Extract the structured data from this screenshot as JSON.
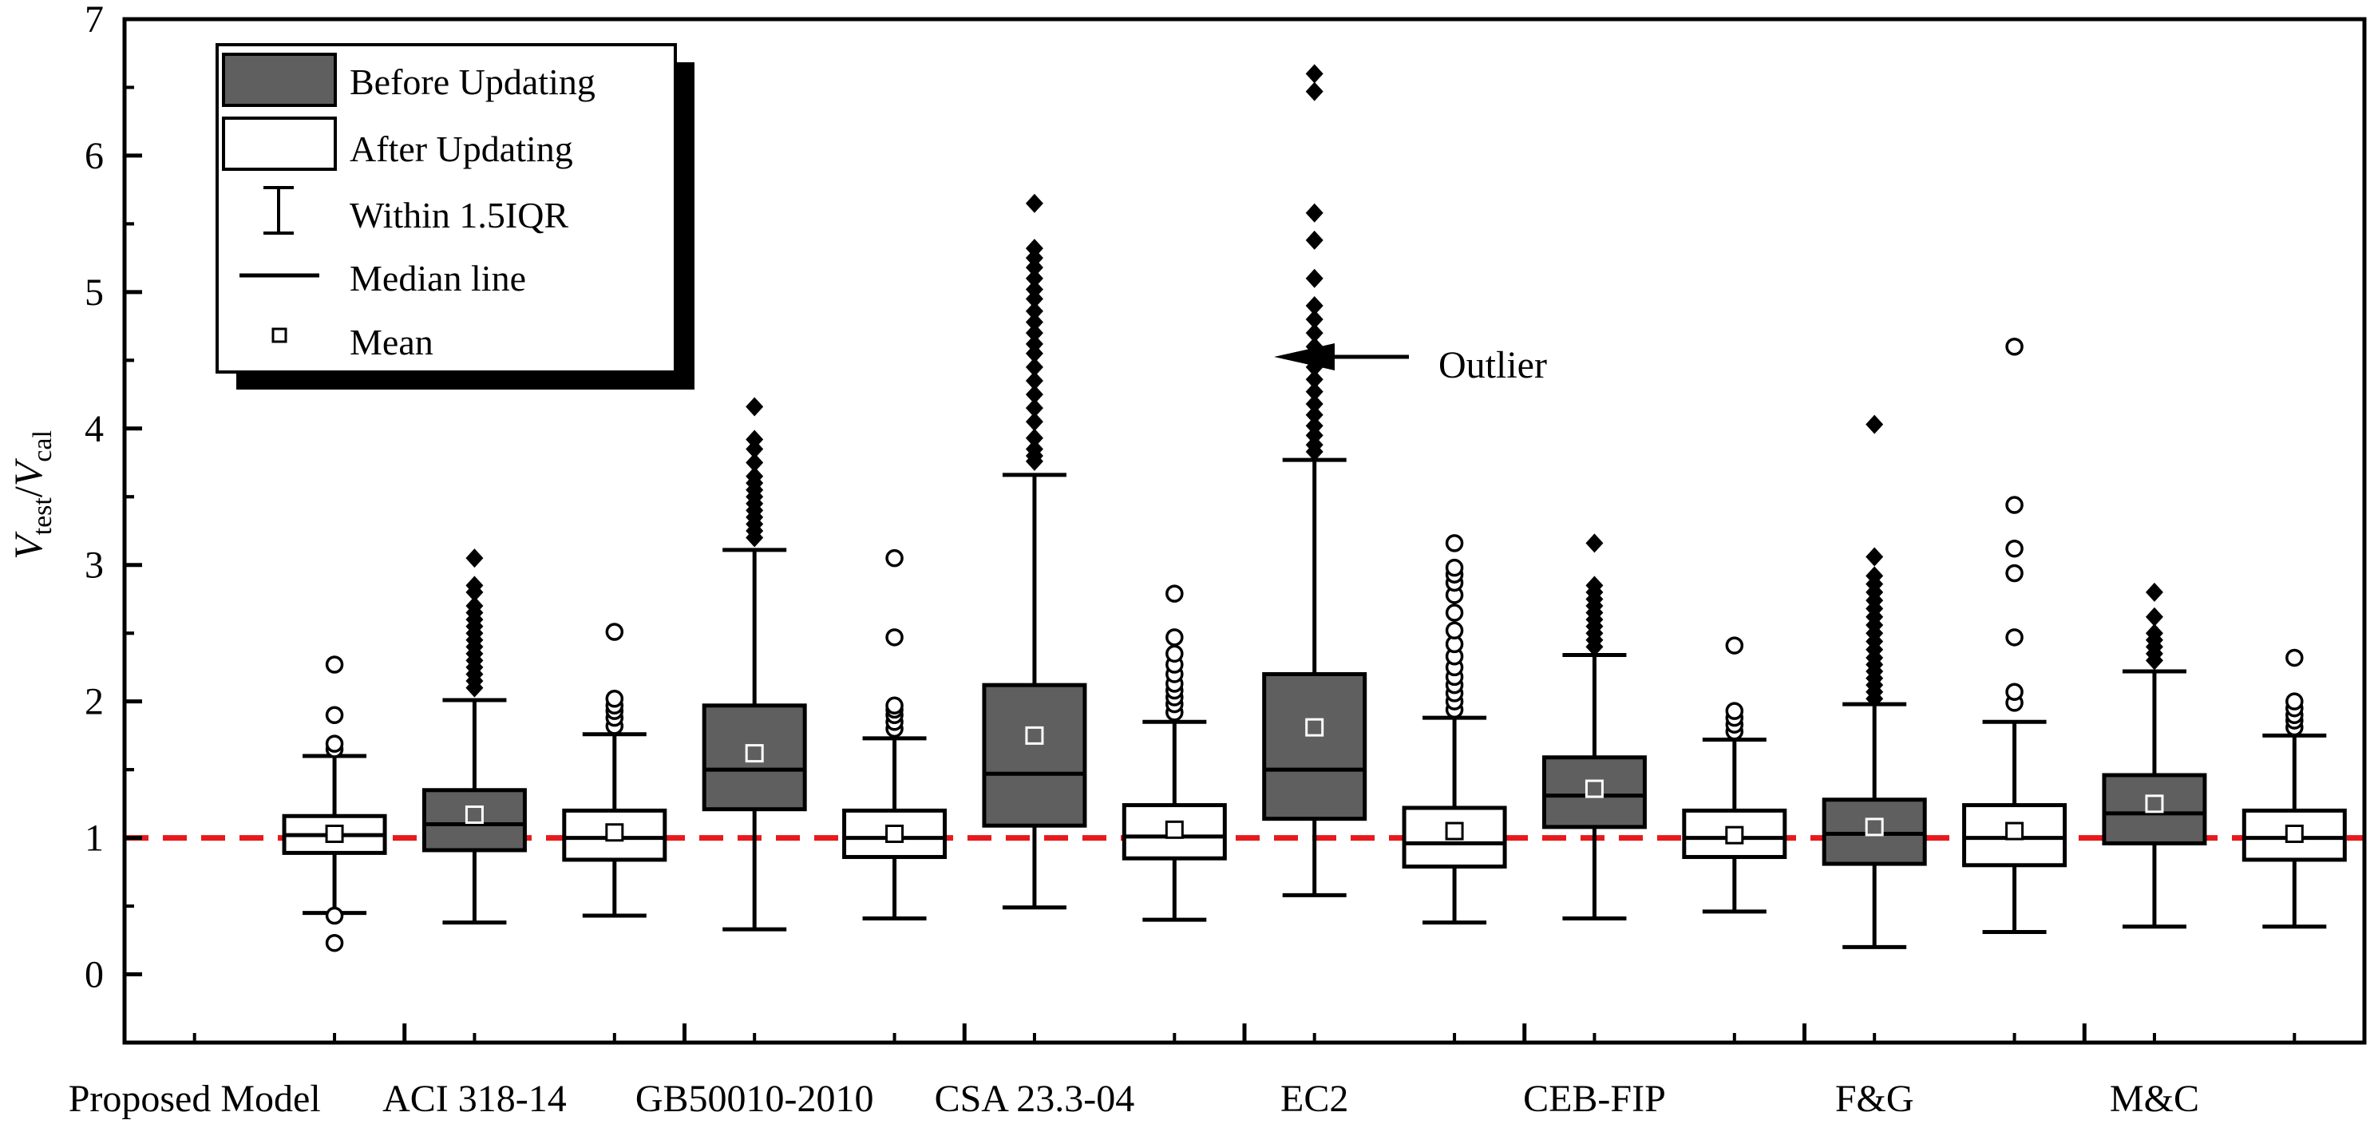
{
  "chart_data": {
    "type": "boxplot",
    "ylabel": {
      "main": "V",
      "sub1": "test",
      "slash": "/",
      "main2": "V",
      "sub2": "cal"
    },
    "ylim": [
      -0.5,
      7
    ],
    "yticks": [
      0,
      1,
      2,
      3,
      4,
      5,
      6,
      7
    ],
    "reference_line": {
      "y": 1,
      "color": "#e8191c",
      "style": "dashed"
    },
    "categories": [
      "Proposed Model",
      "ACI 318-14",
      "GB50010-2010",
      "CSA 23.3-04",
      "EC2",
      "CEB-FIP",
      "F&G",
      "M&C"
    ],
    "colors": {
      "before": "#5f5f5f",
      "after": "#ffffff",
      "stroke": "#000000",
      "ref": "#e8191c"
    },
    "legend": {
      "position": "top-left",
      "before": "Before Updating",
      "after": "After Updating",
      "whisker": "Within 1.5IQR",
      "median": "Median line",
      "mean": "Mean"
    },
    "annotation": {
      "text": "Outlier",
      "points_to": "EC2 outliers"
    },
    "boxes": [
      {
        "category": "Proposed Model",
        "group": "after",
        "whisker_low": 0.45,
        "q1": 0.89,
        "median": 1.02,
        "q3": 1.16,
        "whisker_high": 1.6,
        "mean": 1.03,
        "outliers": [
          0.23,
          0.43,
          1.65,
          1.69,
          1.9,
          2.27
        ]
      },
      {
        "category": "ACI 318-14",
        "group": "before",
        "whisker_low": 0.38,
        "q1": 0.91,
        "median": 1.1,
        "q3": 1.35,
        "whisker_high": 2.01,
        "mean": 1.17,
        "outliers": [
          2.1,
          2.15,
          2.2,
          2.25,
          2.3,
          2.35,
          2.4,
          2.45,
          2.5,
          2.55,
          2.6,
          2.65,
          2.7,
          2.8,
          2.85,
          3.05
        ]
      },
      {
        "category": "ACI 318-14",
        "group": "after",
        "whisker_low": 0.43,
        "q1": 0.84,
        "median": 1.0,
        "q3": 1.2,
        "whisker_high": 1.76,
        "mean": 1.04,
        "outliers": [
          1.82,
          1.88,
          1.93,
          1.97,
          2.02,
          2.51
        ]
      },
      {
        "category": "GB50010-2010",
        "group": "before",
        "whisker_low": 0.33,
        "q1": 1.21,
        "median": 1.5,
        "q3": 1.97,
        "whisker_high": 3.11,
        "mean": 1.62,
        "outliers": [
          3.2,
          3.25,
          3.3,
          3.35,
          3.4,
          3.45,
          3.5,
          3.55,
          3.6,
          3.65,
          3.75,
          3.85,
          3.92,
          4.16
        ]
      },
      {
        "category": "GB50010-2010",
        "group": "after",
        "whisker_low": 0.41,
        "q1": 0.86,
        "median": 1.0,
        "q3": 1.2,
        "whisker_high": 1.73,
        "mean": 1.03,
        "outliers": [
          1.8,
          1.85,
          1.9,
          1.94,
          1.97,
          2.47,
          3.05
        ]
      },
      {
        "category": "CSA 23.3-04",
        "group": "before",
        "whisker_low": 0.49,
        "q1": 1.09,
        "median": 1.47,
        "q3": 2.12,
        "whisker_high": 3.66,
        "mean": 1.75,
        "outliers": [
          3.76,
          3.8,
          3.85,
          3.93,
          4.05,
          4.15,
          4.25,
          4.35,
          4.45,
          4.55,
          4.62,
          4.7,
          4.78,
          4.86,
          4.95,
          5.02,
          5.1,
          5.18,
          5.25,
          5.32,
          5.65
        ]
      },
      {
        "category": "CSA 23.3-04",
        "group": "after",
        "whisker_low": 0.4,
        "q1": 0.85,
        "median": 1.01,
        "q3": 1.24,
        "whisker_high": 1.85,
        "mean": 1.06,
        "outliers": [
          1.92,
          1.98,
          2.03,
          2.08,
          2.13,
          2.2,
          2.27,
          2.35,
          2.47,
          2.79
        ]
      },
      {
        "category": "EC2",
        "group": "before",
        "whisker_low": 0.58,
        "q1": 1.14,
        "median": 1.5,
        "q3": 2.2,
        "whisker_high": 3.77,
        "mean": 1.81,
        "outliers": [
          3.83,
          3.88,
          3.95,
          4.02,
          4.1,
          4.18,
          4.27,
          4.36,
          4.45,
          4.52,
          4.6,
          4.7,
          4.8,
          4.9,
          5.1,
          5.38,
          5.58,
          6.47,
          6.6
        ]
      },
      {
        "category": "EC2",
        "group": "after",
        "whisker_low": 0.38,
        "q1": 0.79,
        "median": 0.96,
        "q3": 1.22,
        "whisker_high": 1.88,
        "mean": 1.05,
        "outliers": [
          1.94,
          2.0,
          2.06,
          2.12,
          2.18,
          2.25,
          2.33,
          2.42,
          2.52,
          2.65,
          2.78,
          2.87,
          2.93,
          2.98,
          3.16
        ]
      },
      {
        "category": "CEB-FIP",
        "group": "before",
        "whisker_low": 0.41,
        "q1": 1.08,
        "median": 1.31,
        "q3": 1.59,
        "whisker_high": 2.34,
        "mean": 1.36,
        "outliers": [
          2.4,
          2.45,
          2.5,
          2.55,
          2.6,
          2.65,
          2.7,
          2.75,
          2.8,
          2.85,
          3.16
        ]
      },
      {
        "category": "CEB-FIP",
        "group": "after",
        "whisker_low": 0.46,
        "q1": 0.86,
        "median": 1.0,
        "q3": 1.2,
        "whisker_high": 1.72,
        "mean": 1.02,
        "outliers": [
          1.78,
          1.83,
          1.88,
          1.93,
          2.41
        ]
      },
      {
        "category": "F&G",
        "group": "before",
        "whisker_low": 0.2,
        "q1": 0.81,
        "median": 1.03,
        "q3": 1.28,
        "whisker_high": 1.98,
        "mean": 1.08,
        "outliers": [
          2.02,
          2.07,
          2.12,
          2.17,
          2.22,
          2.27,
          2.32,
          2.38,
          2.44,
          2.5,
          2.56,
          2.62,
          2.68,
          2.74,
          2.8,
          2.86,
          2.92,
          3.06,
          4.03
        ]
      },
      {
        "category": "F&G",
        "group": "after",
        "whisker_low": 0.31,
        "q1": 0.8,
        "median": 1.0,
        "q3": 1.24,
        "whisker_high": 1.85,
        "mean": 1.05,
        "outliers": [
          1.99,
          2.07,
          2.47,
          2.94,
          3.12,
          3.44,
          4.6
        ]
      },
      {
        "category": "M&C",
        "group": "before",
        "whisker_low": 0.35,
        "q1": 0.96,
        "median": 1.18,
        "q3": 1.46,
        "whisker_high": 2.22,
        "mean": 1.25,
        "outliers": [
          2.3,
          2.35,
          2.4,
          2.45,
          2.5,
          2.62,
          2.8
        ]
      },
      {
        "category": "M&C",
        "group": "after",
        "whisker_low": 0.35,
        "q1": 0.84,
        "median": 1.0,
        "q3": 1.2,
        "whisker_high": 1.75,
        "mean": 1.03,
        "outliers": [
          1.81,
          1.86,
          1.9,
          1.95,
          2.0,
          2.32
        ]
      }
    ]
  }
}
